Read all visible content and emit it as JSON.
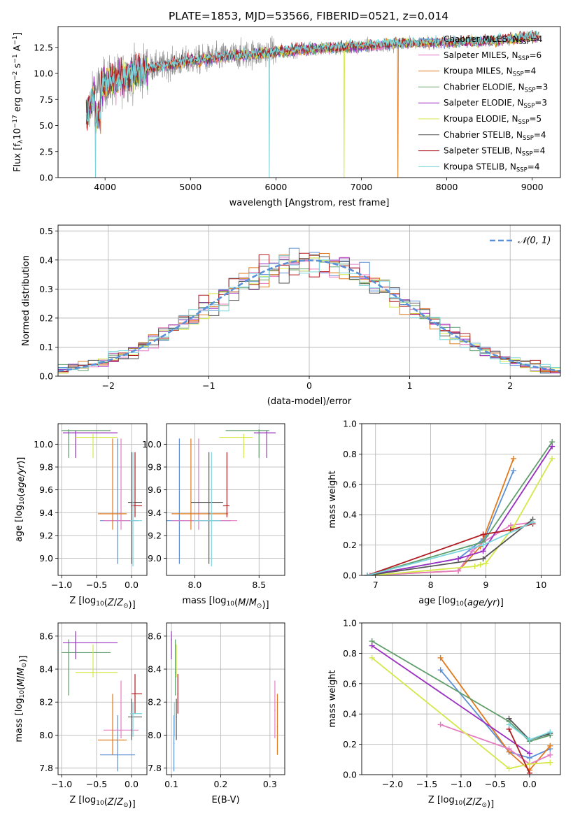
{
  "figure": {
    "title": "PLATE=1853, MJD=53566, FIBERID=0521, z=0.014"
  },
  "colors": {
    "Chabrier MILES": "#5b8fd6",
    "Salpeter MILES": "#e57cc2",
    "Kroupa MILES": "#e07a1e",
    "Chabrier ELODIE": "#5f9e6a",
    "Salpeter ELODIE": "#9a2fc0",
    "Kroupa ELODIE": "#d4e84a",
    "Chabrier STELIB": "#555555",
    "Salpeter STELIB": "#b01c22",
    "Kroupa STELIB": "#7ad6dc",
    "data": "#8a8a8a",
    "gaussian": "#5b8fd6"
  },
  "chart_data": [
    {
      "id": "spectrum",
      "type": "line",
      "xlabel": "wavelength [Angstrom, rest frame]",
      "ylabel": "Flux [f_λ 10^-17 erg cm^-2 s^-1 A^-1]",
      "xlim": [
        3450,
        9330
      ],
      "ylim": [
        0,
        14.5
      ],
      "xticks": [
        4000,
        5000,
        6000,
        7000,
        8000,
        9000
      ],
      "yticks": [
        0.0,
        2.5,
        5.0,
        7.5,
        10.0,
        12.5
      ],
      "legend_position": "top-right",
      "legend": [
        {
          "label": "Chabrier MILES",
          "nssp": "4"
        },
        {
          "label": "Salpeter MILES",
          "nssp": "6"
        },
        {
          "label": "Kroupa MILES",
          "nssp": "4"
        },
        {
          "label": "Chabrier ELODIE",
          "nssp": "3"
        },
        {
          "label": "Salpeter ELODIE",
          "nssp": "3"
        },
        {
          "label": "Kroupa ELODIE",
          "nssp": "5"
        },
        {
          "label": "Chabrier STELIB",
          "nssp": "4"
        },
        {
          "label": "Salpeter STELIB",
          "nssp": "4"
        },
        {
          "label": "Kroupa STELIB",
          "nssp": "4"
        }
      ],
      "observed_range": [
        3780,
        9080
      ],
      "continuum_points": [
        [
          3780,
          6.0
        ],
        [
          3900,
          8.5
        ],
        [
          4000,
          9.0
        ],
        [
          4200,
          9.6
        ],
        [
          4500,
          10.5
        ],
        [
          5000,
          11.2
        ],
        [
          5500,
          11.7
        ],
        [
          6000,
          12.1
        ],
        [
          6500,
          12.4
        ],
        [
          7000,
          12.6
        ],
        [
          7500,
          12.9
        ],
        [
          8000,
          13.0
        ],
        [
          8500,
          13.1
        ],
        [
          9080,
          13.6
        ]
      ],
      "drops": [
        {
          "x": 3890,
          "series": "Kroupa STELIB"
        },
        {
          "x": 5920,
          "series": "Kroupa STELIB"
        },
        {
          "x": 6800,
          "series": "Kroupa ELODIE"
        },
        {
          "x": 7430,
          "series": "Kroupa MILES"
        }
      ]
    },
    {
      "id": "residuals",
      "type": "line",
      "xlabel": "(data-model)/error",
      "ylabel": "Normed distribution",
      "xlim": [
        -2.5,
        2.5
      ],
      "ylim": [
        0,
        0.52
      ],
      "xticks": [
        -2,
        -1,
        0,
        1,
        2
      ],
      "yticks": [
        0.0,
        0.1,
        0.2,
        0.3,
        0.4,
        0.5
      ],
      "legend_label": "N(0,1)",
      "legend_position": "top-right",
      "bin_width": 0.1,
      "grid": true
    },
    {
      "id": "z_age",
      "type": "scatter",
      "xlabel": "Z [log10(Z/Z⊙)]",
      "ylabel": "age [log10(age/yr)]",
      "xlim": [
        -1.05,
        0.22
      ],
      "ylim": [
        8.85,
        10.18
      ],
      "xticks": [
        -1.0,
        -0.5,
        0.0
      ],
      "xticklabels": [
        "−1.0",
        "−0.5",
        "0.0"
      ],
      "yticks": [
        9.0,
        9.2,
        9.4,
        9.6,
        9.8,
        10.0
      ],
      "yticklabels": [
        "9.0",
        "9.2",
        "9.4",
        "9.6",
        "9.8",
        "10.0"
      ],
      "grid": true
    },
    {
      "id": "mass_age",
      "type": "scatter",
      "xlabel": "mass [log10(M/M⊙)]",
      "ylabel": "",
      "xlim": [
        7.78,
        8.7
      ],
      "ylim": [
        8.85,
        10.18
      ],
      "xticks": [
        8.0,
        8.5
      ],
      "xticklabels": [
        "8.0",
        "8.5"
      ],
      "yticks": [
        9.0,
        9.2,
        9.4,
        9.6,
        9.8,
        10.0
      ],
      "yticklabels": [
        "9.0",
        "9.2",
        "9.4",
        "9.6",
        "9.8",
        "10.0"
      ],
      "grid": true
    },
    {
      "id": "age_weight",
      "type": "line",
      "xlabel": "age [log10(age/yr)]",
      "ylabel": "mass weight",
      "xlim": [
        6.75,
        10.35
      ],
      "ylim": [
        0,
        1.0
      ],
      "xticks": [
        7,
        8,
        9,
        10
      ],
      "xticklabels": [
        "7",
        "8",
        "9",
        "10"
      ],
      "yticks": [
        0.0,
        0.2,
        0.4,
        0.6,
        0.8,
        1.0
      ],
      "yticklabels": [
        "0.0",
        "0.2",
        "0.4",
        "0.6",
        "0.8",
        "1.0"
      ],
      "grid": true,
      "series": [
        {
          "name": "Chabrier MILES",
          "x": [
            6.85,
            8.5,
            8.75,
            8.95,
            9.0,
            9.5
          ],
          "y": [
            0.0,
            0.11,
            0.18,
            0.24,
            0.26,
            0.69
          ]
        },
        {
          "name": "Kroupa MILES",
          "x": [
            6.85,
            8.5,
            8.9,
            9.5
          ],
          "y": [
            0.0,
            0.03,
            0.19,
            0.77
          ]
        },
        {
          "name": "Salpeter MILES",
          "x": [
            6.9,
            8.5,
            8.75,
            8.95,
            9.45,
            9.85
          ],
          "y": [
            0.0,
            0.03,
            0.16,
            0.22,
            0.33,
            0.35
          ]
        },
        {
          "name": "Chabrier ELODIE",
          "x": [
            6.85,
            8.95,
            10.2
          ],
          "y": [
            0.0,
            0.22,
            0.88
          ]
        },
        {
          "name": "Salpeter ELODIE",
          "x": [
            6.85,
            8.5,
            8.95,
            10.2
          ],
          "y": [
            0.0,
            0.11,
            0.16,
            0.85
          ]
        },
        {
          "name": "Kroupa ELODIE",
          "x": [
            6.95,
            8.8,
            8.9,
            9.0,
            9.5,
            10.2
          ],
          "y": [
            0.0,
            0.06,
            0.07,
            0.08,
            0.32,
            0.77
          ]
        },
        {
          "name": "Chabrier STELIB",
          "x": [
            6.85,
            8.95,
            9.85
          ],
          "y": [
            0.0,
            0.11,
            0.37
          ]
        },
        {
          "name": "Salpeter STELIB",
          "x": [
            6.85,
            8.95,
            9.45,
            9.85
          ],
          "y": [
            0.0,
            0.27,
            0.3,
            0.34
          ]
        },
        {
          "name": "Kroupa STELIB",
          "x": [
            6.85,
            8.95,
            9.85
          ],
          "y": [
            0.0,
            0.2,
            0.35
          ]
        }
      ]
    },
    {
      "id": "z_mass",
      "type": "scatter",
      "xlabel": "Z [log10(Z/Z⊙)]",
      "ylabel": "mass [log10(M/M⊙)]",
      "xlim": [
        -1.05,
        0.22
      ],
      "ylim": [
        7.76,
        8.68
      ],
      "xticks": [
        -1.0,
        -0.5,
        0.0
      ],
      "xticklabels": [
        "−1.0",
        "−0.5",
        "0.0"
      ],
      "yticks": [
        7.8,
        8.0,
        8.2,
        8.4,
        8.6
      ],
      "yticklabels": [
        "7.8",
        "8.0",
        "8.2",
        "8.4",
        "8.6"
      ],
      "grid": true
    },
    {
      "id": "ebv_mass",
      "type": "scatter",
      "xlabel": "E(B-V)",
      "ylabel": "",
      "xlim": [
        0.09,
        0.33
      ],
      "ylim": [
        7.76,
        8.68
      ],
      "xticks": [
        0.1,
        0.2,
        0.3
      ],
      "xticklabels": [
        "0.1",
        "0.2",
        "0.3"
      ],
      "yticks": [
        7.8,
        8.0,
        8.2,
        8.4,
        8.6
      ],
      "yticklabels": [
        "7.8",
        "8.0",
        "8.2",
        "8.4",
        "8.6"
      ],
      "grid": true
    },
    {
      "id": "z_weight",
      "type": "line",
      "xlabel": "Z [log10(Z/Z⊙)]",
      "ylabel": "mass weight",
      "xlim": [
        -2.45,
        0.45
      ],
      "ylim": [
        0,
        1.0
      ],
      "xticks": [
        -2.0,
        -1.5,
        -1.0,
        -0.5,
        0.0
      ],
      "xticklabels": [
        "−2.0",
        "−1.5",
        "−1.0",
        "−0.5",
        "0.0"
      ],
      "yticks": [
        0.0,
        0.2,
        0.4,
        0.6,
        0.8,
        1.0
      ],
      "yticklabels": [
        "0.0",
        "0.2",
        "0.4",
        "0.6",
        "0.8",
        "1.0"
      ],
      "grid": true,
      "series": [
        {
          "name": "Chabrier MILES",
          "x": [
            -1.3,
            -0.3,
            0.0,
            0.3
          ],
          "y": [
            0.69,
            0.15,
            0.11,
            0.17
          ]
        },
        {
          "name": "Kroupa MILES",
          "x": [
            -1.3,
            -0.3,
            0.0,
            0.3
          ],
          "y": [
            0.77,
            0.15,
            0.03,
            0.19
          ]
        },
        {
          "name": "Salpeter MILES",
          "x": [
            -1.3,
            -0.3,
            0.0,
            0.3
          ],
          "y": [
            0.33,
            0.17,
            0.07,
            0.13
          ]
        },
        {
          "name": "Chabrier ELODIE",
          "x": [
            -2.3,
            -0.3,
            0.0,
            0.3
          ],
          "y": [
            0.88,
            0.35,
            0.22,
            0.26
          ]
        },
        {
          "name": "Salpeter ELODIE",
          "x": [
            -2.3,
            0.0
          ],
          "y": [
            0.85,
            0.14
          ]
        },
        {
          "name": "Kroupa ELODIE",
          "x": [
            -2.3,
            -0.3,
            0.0,
            0.3
          ],
          "y": [
            0.77,
            0.04,
            0.07,
            0.08
          ]
        },
        {
          "name": "Chabrier STELIB",
          "x": [
            -0.3,
            0.0,
            0.3
          ],
          "y": [
            0.37,
            0.23,
            0.27
          ]
        },
        {
          "name": "Salpeter STELIB",
          "x": [
            -0.3,
            0.0
          ],
          "y": [
            0.3,
            0.01
          ]
        },
        {
          "name": "Kroupa STELIB",
          "x": [
            -0.3,
            0.0,
            0.3
          ],
          "y": [
            0.33,
            0.23,
            0.28
          ]
        }
      ]
    }
  ],
  "ssp_errorbars": [
    {
      "name": "Chabrier MILES",
      "Z": -0.2,
      "Zlo": -0.45,
      "Zhi": 0.05,
      "age": 9.33,
      "agelo": 8.95,
      "agehi": 10.05,
      "mass": 7.88,
      "masslo": 7.78,
      "masshi": 8.28,
      "mass_h": 7.95,
      "masslo_h": 7.78,
      "masshi_h": 8.12,
      "ebv": 0.105,
      "ebvlo": 0.104,
      "ebvhi": 0.106
    },
    {
      "name": "Salpeter MILES",
      "Z": -0.15,
      "Zlo": -0.4,
      "Zhi": 0.1,
      "age": 9.33,
      "agelo": 9.25,
      "agehi": 10.05,
      "mass": 8.03,
      "masslo": 7.82,
      "masshi": 8.33,
      "mass_h": 8.15,
      "masslo_h": 7.98,
      "masshi_h": 8.33,
      "ebv": 0.31,
      "ebvlo": 0.309,
      "ebvhi": 0.311
    },
    {
      "name": "Kroupa MILES",
      "Z": -0.27,
      "Zlo": -0.48,
      "Zhi": -0.07,
      "age": 9.39,
      "agelo": 9.25,
      "agehi": 10.05,
      "mass": 7.97,
      "masslo": 7.82,
      "masshi": 8.26,
      "mass_h": 8.05,
      "masslo_h": 7.88,
      "masshi_h": 8.25,
      "ebv": 0.315,
      "ebvlo": 0.314,
      "ebvhi": 0.316
    },
    {
      "name": "Chabrier ELODIE",
      "Z": -0.9,
      "Zlo": -1.0,
      "Zhi": -0.3,
      "age": 10.12,
      "agelo": 9.88,
      "agehi": 10.13,
      "mass": 8.5,
      "masslo": 8.24,
      "masshi": 8.58,
      "mass_h": 8.38,
      "masslo_h": 8.24,
      "masshi_h": 8.58,
      "ebv": 0.108,
      "ebvlo": 0.107,
      "ebvhi": 0.109
    },
    {
      "name": "Salpeter ELODIE",
      "Z": -0.8,
      "Zlo": -0.98,
      "Zhi": -0.2,
      "age": 10.1,
      "agelo": 9.88,
      "agehi": 10.12,
      "mass": 8.56,
      "masslo": 8.46,
      "masshi": 8.63,
      "mass_h": 8.58,
      "masslo_h": 8.46,
      "masshi_h": 8.63,
      "ebv": 0.1,
      "ebvlo": 0.099,
      "ebvhi": 0.101
    },
    {
      "name": "Kroupa ELODIE",
      "Z": -0.55,
      "Zlo": -0.8,
      "Zhi": -0.2,
      "age": 10.06,
      "agelo": 9.88,
      "agehi": 10.09,
      "mass": 8.38,
      "masslo": 8.19,
      "masshi": 8.45,
      "mass_h": 8.44,
      "masslo_h": 8.35,
      "masshi_h": 8.55,
      "ebv": 0.11,
      "ebvlo": 0.109,
      "ebvhi": 0.111
    },
    {
      "name": "Chabrier STELIB",
      "Z": 0.0,
      "Zlo": -0.05,
      "Zhi": 0.15,
      "age": 9.49,
      "agelo": 8.95,
      "agehi": 9.93,
      "mass": 8.11,
      "masslo": 7.97,
      "masshi": 8.22,
      "mass_h": 8.11,
      "masslo_h": 7.97,
      "masshi_h": 8.22,
      "ebv": 0.11,
      "ebvlo": 0.109,
      "ebvhi": 0.111
    },
    {
      "name": "Salpeter STELIB",
      "Z": 0.05,
      "Zlo": 0.0,
      "Zhi": 0.15,
      "age": 9.46,
      "agelo": 9.36,
      "agehi": 9.93,
      "mass": 8.25,
      "masslo": 8.22,
      "masshi": 8.27,
      "mass_h": 8.25,
      "masslo_h": 8.13,
      "masshi_h": 8.37,
      "ebv": 0.113,
      "ebvlo": 0.112,
      "ebvhi": 0.114
    },
    {
      "name": "Kroupa STELIB",
      "Z": 0.02,
      "Zlo": -0.02,
      "Zhi": 0.15,
      "age": 9.33,
      "agelo": 8.93,
      "agehi": 9.93,
      "mass": 8.13,
      "masslo": 7.99,
      "masshi": 8.2,
      "mass_h": 8.09,
      "masslo_h": 7.99,
      "masshi_h": 8.2,
      "ebv": 0.106,
      "ebvlo": 0.105,
      "ebvhi": 0.107
    }
  ]
}
